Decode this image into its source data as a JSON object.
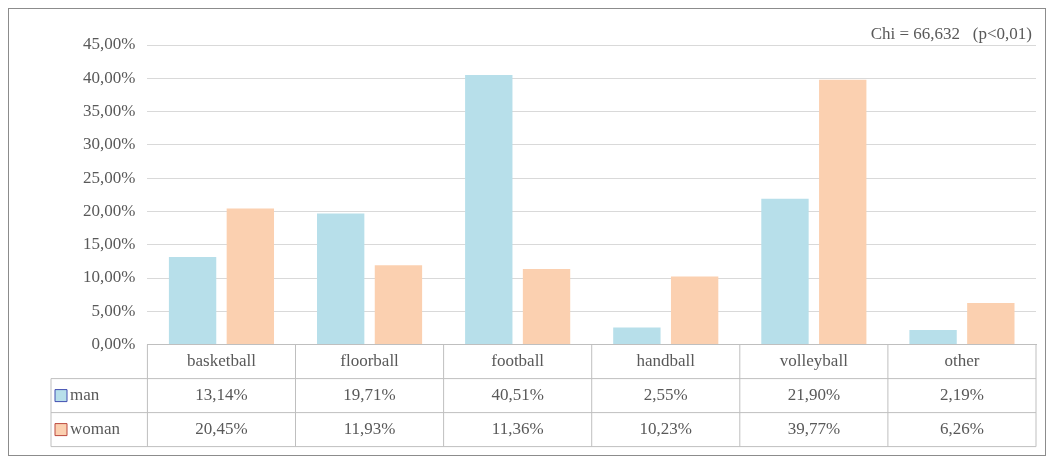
{
  "chart_data": {
    "type": "bar",
    "categories": [
      "basketball",
      "floorball",
      "football",
      "handball",
      "volleyball",
      "other"
    ],
    "series": [
      {
        "name": "man",
        "color": "#b7dfea",
        "values": [
          13.14,
          19.71,
          40.51,
          2.55,
          21.9,
          2.19
        ],
        "value_labels": [
          "13,14%",
          "19,71%",
          "40,51%",
          "2,55%",
          "21,90%",
          "2,19%"
        ]
      },
      {
        "name": "woman",
        "color": "#fbd0b0",
        "values": [
          20.45,
          11.93,
          11.36,
          10.23,
          39.77,
          6.26
        ],
        "value_labels": [
          "20,45%",
          "11,93%",
          "11,36%",
          "10,23%",
          "39,77%",
          "6,26%"
        ]
      }
    ],
    "ylim": [
      0,
      45
    ],
    "yticks": [
      {
        "value": 0,
        "label": "0,00%"
      },
      {
        "value": 5,
        "label": "5,00%"
      },
      {
        "value": 10,
        "label": "10,00%"
      },
      {
        "value": 15,
        "label": "15,00%"
      },
      {
        "value": 20,
        "label": "20,00%"
      },
      {
        "value": 25,
        "label": "25,00%"
      },
      {
        "value": 30,
        "label": "30,00%"
      },
      {
        "value": 35,
        "label": "35,00%"
      },
      {
        "value": 40,
        "label": "40,00%"
      },
      {
        "value": 45,
        "label": "45,00%"
      }
    ],
    "grid": "y",
    "legend": "bottom",
    "annotations": [
      "Chi = 66,632   (p<0,01)"
    ]
  }
}
